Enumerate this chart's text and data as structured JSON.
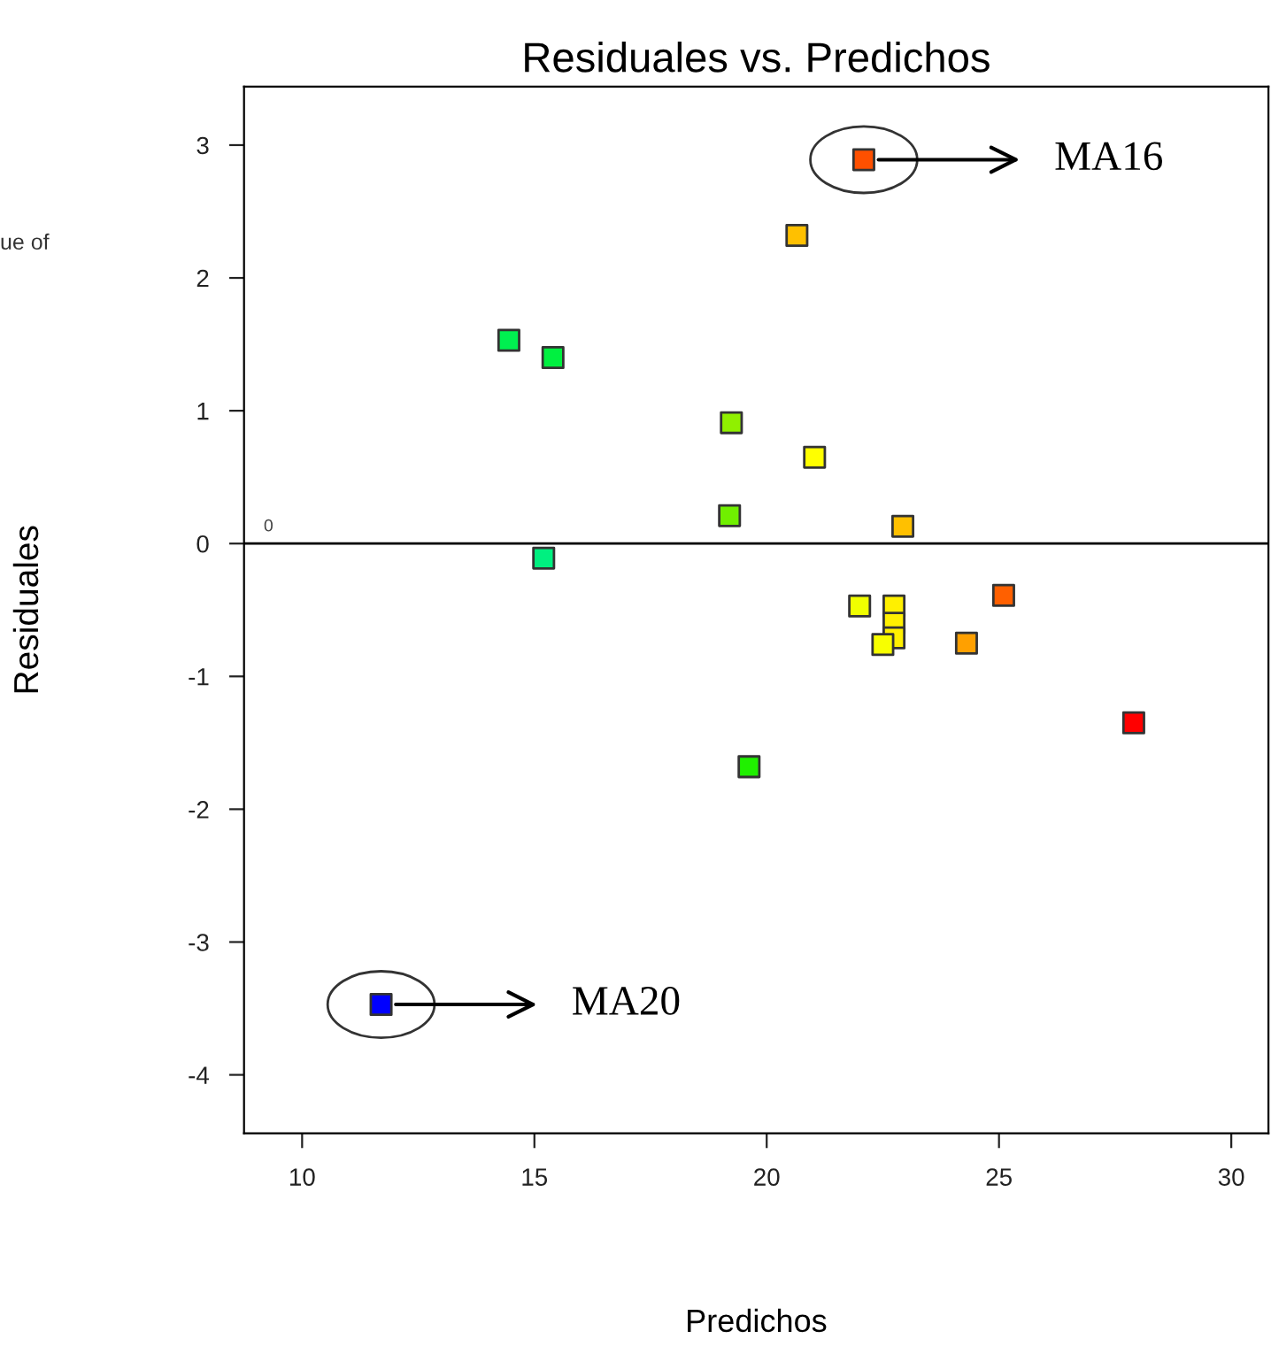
{
  "chart_data": {
    "type": "scatter",
    "title": "Residuales vs. Predichos",
    "xlabel": "Predichos",
    "ylabel": "Residuales",
    "x": [
      14.45,
      15.4,
      15.2,
      19.24,
      19.2,
      19.62,
      20.65,
      22.09,
      21.03,
      22.93,
      22.0,
      22.74,
      22.74,
      22.74,
      22.5,
      24.3,
      25.1,
      27.9,
      11.7
    ],
    "values": [
      1.53,
      1.4,
      -0.11,
      0.91,
      0.21,
      -1.68,
      2.32,
      2.89,
      0.65,
      0.13,
      -0.47,
      -0.47,
      -0.6,
      -0.71,
      -0.76,
      -0.75,
      -0.39,
      -1.35,
      -3.47
    ],
    "colors": [
      "#00f050",
      "#00f040",
      "#00f080",
      "#90f000",
      "#70f000",
      "#20f000",
      "#ffc000",
      "#ff5000",
      "#ffff00",
      "#ffc000",
      "#f0ff00",
      "#fff000",
      "#fff000",
      "#fff000",
      "#f8ff00",
      "#ffa000",
      "#ff6000",
      "#ff0000",
      "#0000ff"
    ],
    "marker": "square",
    "xlim": [
      8.75,
      30.8
    ],
    "ylim": [
      -4.44,
      3.44
    ],
    "xticks": [
      10,
      15,
      20,
      25,
      30
    ],
    "yticks": [
      -4,
      -3,
      -2,
      -1,
      0,
      1,
      2,
      3
    ],
    "ref_lines": [
      {
        "axis": "y",
        "value": 0,
        "label": "0",
        "color": "#000000"
      }
    ],
    "grid": false,
    "legend": false,
    "annotations": [
      {
        "text": "MA16",
        "x": 22.09,
        "y": 2.89
      },
      {
        "text": "MA20",
        "x": 11.7,
        "y": -3.47
      },
      "ue of"
    ]
  }
}
